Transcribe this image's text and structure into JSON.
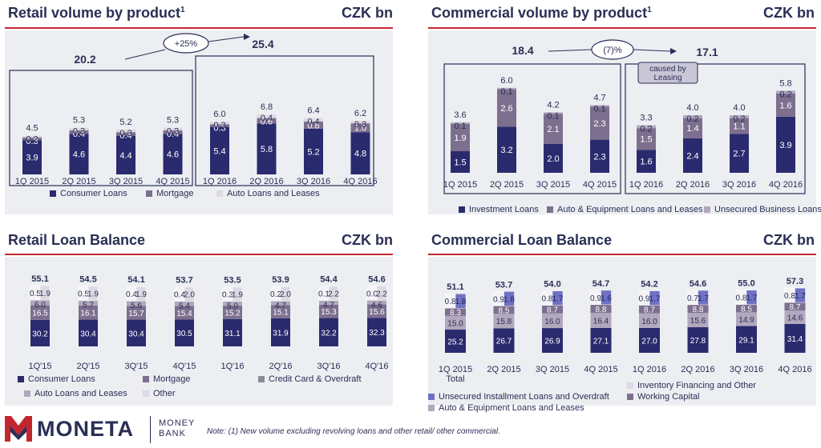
{
  "colors": {
    "navy": "#2a2b6e",
    "mauve": "#7d6f8e",
    "lilac": "#b1a8bd",
    "pale": "#ddd9e2",
    "white": "#f4f4f6",
    "blue": "#6f72c2",
    "grey": "#8c8c94",
    "accent": "#c4262e",
    "panel_bg": "#eceef2"
  },
  "footer": {
    "logo_word": "MONETA",
    "logo_sub_1": "MONEY",
    "logo_sub_2": "BANK",
    "logo_icon": "moneta-m-logo-icon",
    "note": "Note: (1) New volume excluding revolving loans and other retail/ other commercial."
  },
  "chart_data": [
    {
      "id": "retail-volume",
      "type": "bar",
      "stacked": true,
      "title": "Retail volume by product",
      "title_sup": "1",
      "unit": "CZK bn",
      "categories": [
        "1Q 2015",
        "2Q 2015",
        "3Q 2015",
        "4Q 2015",
        "1Q 2016",
        "2Q 2016",
        "3Q 2016",
        "4Q 2016"
      ],
      "totals": [
        "4.5",
        "5.3",
        "5.2",
        "5.3",
        "6.0",
        "6.8",
        "6.4",
        "6.2"
      ],
      "series": [
        {
          "name": "Consumer Loans",
          "color": "navy",
          "values": [
            3.9,
            4.6,
            4.4,
            4.6,
            5.4,
            5.8,
            5.2,
            4.8
          ],
          "labels": [
            "3.9",
            "4.6",
            "4.4",
            "4.6",
            "5.4",
            "5.8",
            "5.2",
            "4.8"
          ]
        },
        {
          "name": "Mortgage",
          "color": "mauve",
          "values": [
            0.3,
            0.4,
            0.4,
            0.4,
            0.3,
            0.6,
            0.8,
            1.0
          ],
          "labels": [
            "0.3",
            "0.4",
            "0.4",
            "0.4",
            "0.3",
            "0.6",
            "0.8",
            "1.0"
          ]
        },
        {
          "name": "Auto Loans and Leases",
          "color": "pale",
          "values": [
            0.2,
            0.3,
            0.3,
            0.3,
            0.3,
            0.4,
            0.4,
            0.3
          ],
          "labels": [
            "0.2",
            "0.3",
            "0.3",
            "0.3",
            "0.3",
            "0.4",
            "0.4",
            "0.3"
          ]
        }
      ],
      "groups": [
        {
          "total": "20.2"
        },
        {
          "total": "25.4"
        }
      ],
      "callouts": [
        "+25%"
      ]
    },
    {
      "id": "commercial-volume",
      "type": "bar",
      "stacked": true,
      "title": "Commercial volume by product",
      "title_sup": "1",
      "unit": "CZK bn",
      "categories": [
        "1Q 2015",
        "2Q 2015",
        "3Q 2015",
        "4Q 2015",
        "1Q 2016",
        "2Q 2016",
        "3Q 2016",
        "4Q 2016"
      ],
      "totals": [
        "3.6",
        "6.0",
        "4.2",
        "4.7",
        "3.3",
        "4.0",
        "4.0",
        "5.8"
      ],
      "series": [
        {
          "name": "Investment Loans",
          "color": "navy",
          "values": [
            1.5,
            3.2,
            2.0,
            2.3,
            1.6,
            2.4,
            2.7,
            3.9
          ],
          "labels": [
            "1.5",
            "3.2",
            "2.0",
            "2.3",
            "1.6",
            "2.4",
            "2.7",
            "3.9"
          ]
        },
        {
          "name": "Auto & Equipment Loans and Leases",
          "color": "mauve",
          "values": [
            1.9,
            2.6,
            2.1,
            2.3,
            1.5,
            1.4,
            1.1,
            1.6
          ],
          "labels": [
            "1.9",
            "2.6",
            "2.1",
            "2.3",
            "1.5",
            "1.4",
            "1.1",
            "1.6"
          ]
        },
        {
          "name": "Unsecured Business Loans",
          "color": "lilac",
          "values": [
            0.1,
            0.1,
            0.1,
            0.1,
            0.2,
            0.2,
            0.2,
            0.2
          ],
          "labels": [
            "0.1",
            "0.1",
            "0.1",
            "0.1",
            "0.2",
            "0.2",
            "0.2",
            "0.2"
          ]
        }
      ],
      "groups": [
        {
          "total": "18.4"
        },
        {
          "total": "17.1"
        }
      ],
      "callouts": [
        "(7)%",
        "caused by Leasing"
      ]
    },
    {
      "id": "retail-balance",
      "type": "bar",
      "stacked": true,
      "title": "Retail Loan Balance",
      "unit": "CZK bn",
      "categories": [
        "1Q'15",
        "2Q'15",
        "3Q'15",
        "4Q'15",
        "1Q'16",
        "2Q'16",
        "3Q'16",
        "4Q'16"
      ],
      "totals": [
        "55.1",
        "54.5",
        "54.1",
        "53.7",
        "53.5",
        "53.9",
        "54.4",
        "54.6"
      ],
      "series": [
        {
          "name": "Consumer Loans",
          "color": "navy",
          "values": [
            30.2,
            30.4,
            30.4,
            30.5,
            31.1,
            31.9,
            32.2,
            32.3
          ],
          "labels": [
            "30.2",
            "30.4",
            "30.4",
            "30.5",
            "31.1",
            "31.9",
            "32.2",
            "32.3"
          ]
        },
        {
          "name": "Mortgage",
          "color": "mauve",
          "values": [
            16.5,
            16.1,
            15.7,
            15.4,
            15.2,
            15.1,
            15.3,
            15.6
          ],
          "labels": [
            "16.5",
            "16.1",
            "15.7",
            "15.4",
            "15.2",
            "15.1",
            "15.3",
            "15.6"
          ]
        },
        {
          "name": "Auto Loans and Leases",
          "color": "lilac",
          "values": [
            6.0,
            5.7,
            5.6,
            5.4,
            5.0,
            4.7,
            4.7,
            4.6
          ],
          "labels": [
            "6.0",
            "5.7",
            "5.6",
            "5.4",
            "5.0",
            "4.7",
            "4.7",
            "4.6"
          ]
        },
        {
          "name": "Other",
          "color": "white",
          "values": [
            0.5,
            0.5,
            0.4,
            0.4,
            0.3,
            0.2,
            0.1,
            0.0
          ],
          "labels": [
            "0.5",
            "0.5",
            "0.4",
            "0.4",
            "0.3",
            "0.2",
            "0.1",
            "0.0"
          ],
          "side": true
        },
        {
          "name": "Credit Card & Overdraft",
          "color": "pale",
          "values": [
            1.9,
            1.9,
            1.9,
            2.0,
            1.9,
            2.0,
            2.2,
            2.2
          ],
          "labels": [
            "1.9",
            "1.9",
            "1.9",
            "2.0",
            "1.9",
            "2.0",
            "2.2",
            "2.2"
          ],
          "side": true
        }
      ]
    },
    {
      "id": "commercial-balance",
      "type": "bar",
      "stacked": true,
      "title": "Commercial Loan Balance",
      "unit": "CZK bn",
      "categories": [
        "1Q 2015",
        "2Q 2015",
        "3Q 2015",
        "4Q 2015",
        "1Q 2016",
        "2Q 2016",
        "3Q 2016",
        "4Q 2016"
      ],
      "category_note": "Total",
      "totals": [
        "51.1",
        "53.7",
        "54.0",
        "54.7",
        "54.2",
        "54.6",
        "55.0",
        "57.3"
      ],
      "series": [
        {
          "name": "Working Capital",
          "color": "navy",
          "values": [
            25.2,
            26.7,
            26.9,
            27.1,
            27.0,
            27.8,
            29.1,
            31.4
          ],
          "labels": [
            "25.2",
            "26.7",
            "26.9",
            "27.1",
            "27.0",
            "27.8",
            "29.1",
            "31.4"
          ]
        },
        {
          "name": "Auto & Equipment Loans and Leases",
          "color": "lilac",
          "values": [
            15.0,
            15.8,
            16.0,
            16.4,
            16.0,
            15.6,
            14.9,
            14.6
          ],
          "labels": [
            "15.0",
            "15.8",
            "16.0",
            "16.4",
            "16.0",
            "15.6",
            "14.9",
            "14.6"
          ]
        },
        {
          "name": "Inventory Financing and Other",
          "color": "mauve",
          "values": [
            8.3,
            8.5,
            8.7,
            8.8,
            8.7,
            8.8,
            8.5,
            8.7
          ],
          "labels": [
            "8.3",
            "8.5",
            "8.7",
            "8.8",
            "8.7",
            "8.8",
            "8.5",
            "8.7"
          ]
        },
        {
          "name": "Inventory Financing and Other (pale)",
          "color": "white",
          "values": [
            0.8,
            0.9,
            0.8,
            0.9,
            0.9,
            0.7,
            0.8,
            0.8
          ],
          "labels": [
            "0.8",
            "0.9",
            "0.8",
            "0.9",
            "0.9",
            "0.7",
            "0.8",
            "0.8"
          ],
          "side": true
        },
        {
          "name": "Unsecured Installment Loans and Overdraft",
          "color": "blue",
          "values": [
            1.8,
            1.8,
            1.7,
            1.6,
            1.7,
            1.7,
            1.7,
            1.7
          ],
          "labels": [
            "1.8",
            "1.8",
            "1.7",
            "1.6",
            "1.7",
            "1.7",
            "1.7",
            "1.7"
          ],
          "side": true
        }
      ]
    }
  ],
  "legends": {
    "retail-volume": [
      {
        "label": "Consumer Loans",
        "color": "navy"
      },
      {
        "label": "Mortgage",
        "color": "mauve"
      },
      {
        "label": "Auto Loans and Leases",
        "color": "pale"
      }
    ],
    "commercial-volume": [
      {
        "label": "Investment Loans",
        "color": "navy"
      },
      {
        "label": "Auto & Equipment Loans and Leases",
        "color": "mauve"
      },
      {
        "label": "Unsecured Business Loans",
        "color": "lilac"
      }
    ],
    "retail-balance": [
      {
        "label": "Consumer Loans",
        "color": "navy"
      },
      {
        "label": "Mortgage",
        "color": "mauve"
      },
      {
        "label": "Credit Card & Overdraft",
        "color": "grey"
      },
      {
        "label": "Auto Loans and Leases",
        "color": "lilac"
      },
      {
        "label": "Other",
        "color": "pale"
      }
    ],
    "commercial-balance": [
      {
        "label": "Inventory Financing and Other",
        "color": "pale"
      },
      {
        "label": "Unsecured Installment Loans and Overdraft",
        "color": "blue"
      },
      {
        "label": "Working Capital",
        "color": "mauve"
      },
      {
        "label": "Auto & Equipment Loans and Leases",
        "color": "lilac"
      }
    ]
  }
}
